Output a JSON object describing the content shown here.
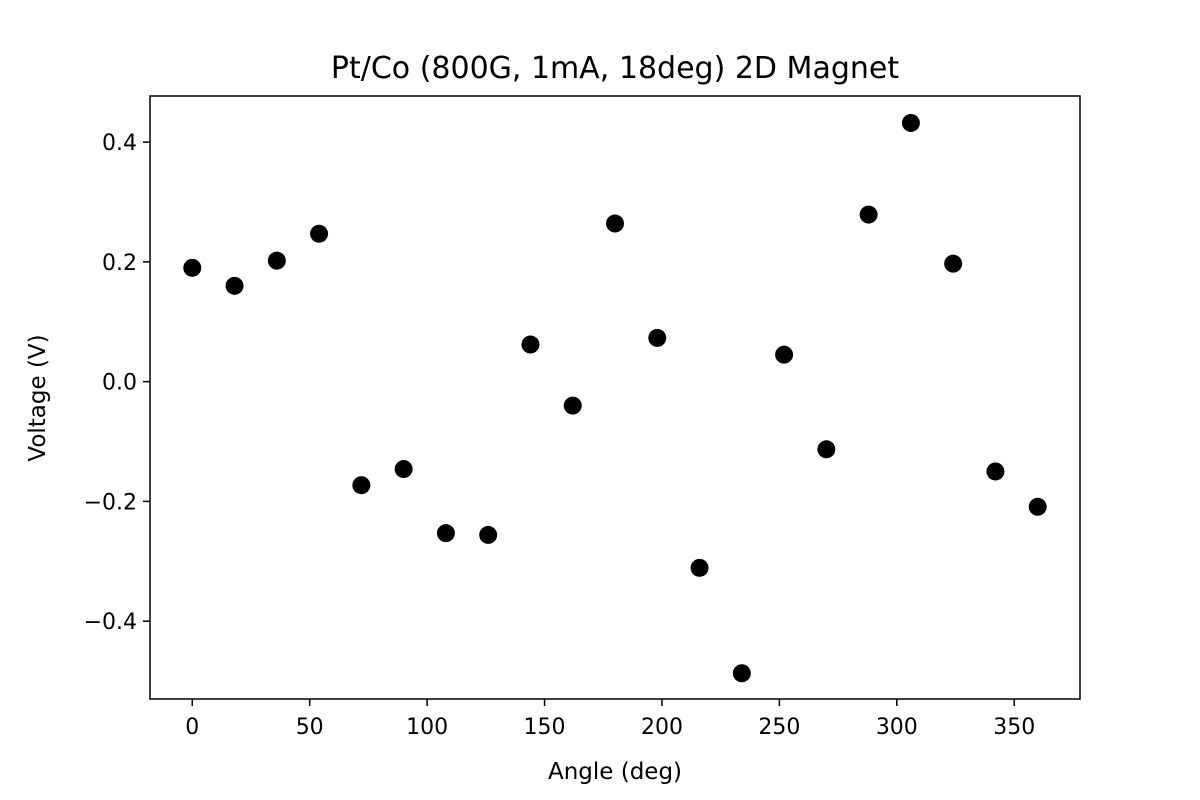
{
  "chart_data": {
    "type": "scatter",
    "title": "Pt/Co (800G, 1mA, 18deg) 2D Magnet",
    "xlabel": "Angle (deg)",
    "ylabel": "Voltage (V)",
    "xlim": [
      -18,
      378
    ],
    "ylim": [
      -0.53,
      0.477
    ],
    "xticks": [
      0,
      50,
      100,
      150,
      200,
      250,
      300,
      350
    ],
    "xtick_labels": [
      "0",
      "50",
      "100",
      "150",
      "200",
      "250",
      "300",
      "350"
    ],
    "yticks": [
      -0.4,
      -0.2,
      0.0,
      0.2,
      0.4
    ],
    "ytick_labels": [
      "−0.4",
      "−0.2",
      "0.0",
      "0.2",
      "0.4"
    ],
    "grid": false,
    "marker_color": "#000000",
    "series": [
      {
        "x": [
          0,
          18,
          36,
          54,
          72,
          90,
          108,
          126,
          144,
          162,
          180,
          198,
          216,
          234,
          252,
          270,
          288,
          306,
          324,
          342,
          360
        ],
        "y": [
          0.19,
          0.16,
          0.202,
          0.247,
          -0.173,
          -0.146,
          -0.253,
          -0.256,
          0.062,
          -0.04,
          0.264,
          0.073,
          -0.311,
          -0.487,
          0.045,
          -0.113,
          0.279,
          0.432,
          0.197,
          -0.15,
          -0.209
        ]
      }
    ]
  }
}
